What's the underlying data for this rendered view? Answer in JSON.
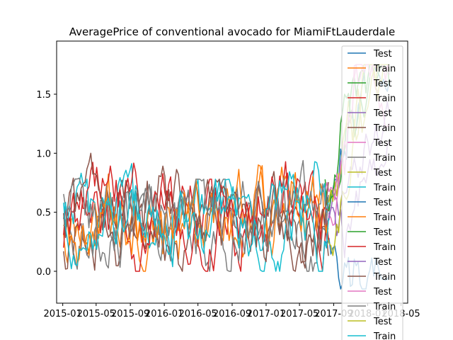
{
  "chart_data": {
    "type": "line",
    "title": "AveragePrice of conventional avocado for MiamiFtLauderdale",
    "xlabel": "",
    "ylabel": "",
    "x_range": [
      "2014-12-10",
      "2018-05-25"
    ],
    "ylim": [
      -0.27,
      1.95
    ],
    "x_tick_labels": [
      "2015-01",
      "2015-05",
      "2015-09",
      "2016-01",
      "2016-05",
      "2016-09",
      "2017-01",
      "2017-05",
      "2017-09",
      "2018-01",
      "2018-05"
    ],
    "y_tick_labels": [
      "0.0",
      "0.5",
      "1.0",
      "1.5"
    ],
    "y_ticks": [
      0.0,
      0.5,
      1.0,
      1.5
    ],
    "grid": false,
    "legend_position": "top-right",
    "colors": [
      "#1f77b4",
      "#ff7f0e",
      "#2ca02c",
      "#d62728",
      "#9467bd",
      "#8c564b",
      "#e377c2",
      "#7f7f7f",
      "#bcbd22",
      "#17becf"
    ],
    "series": [
      {
        "name": "Test"
      },
      {
        "name": "Train"
      },
      {
        "name": "Test"
      },
      {
        "name": "Train"
      },
      {
        "name": "Test"
      },
      {
        "name": "Train"
      },
      {
        "name": "Test"
      },
      {
        "name": "Train"
      },
      {
        "name": "Test"
      },
      {
        "name": "Train"
      },
      {
        "name": "Test"
      },
      {
        "name": "Train"
      },
      {
        "name": "Test"
      },
      {
        "name": "Train"
      },
      {
        "name": "Test"
      },
      {
        "name": "Train"
      },
      {
        "name": "Test"
      },
      {
        "name": "Train"
      },
      {
        "name": "Test"
      },
      {
        "name": "Train"
      }
    ]
  }
}
